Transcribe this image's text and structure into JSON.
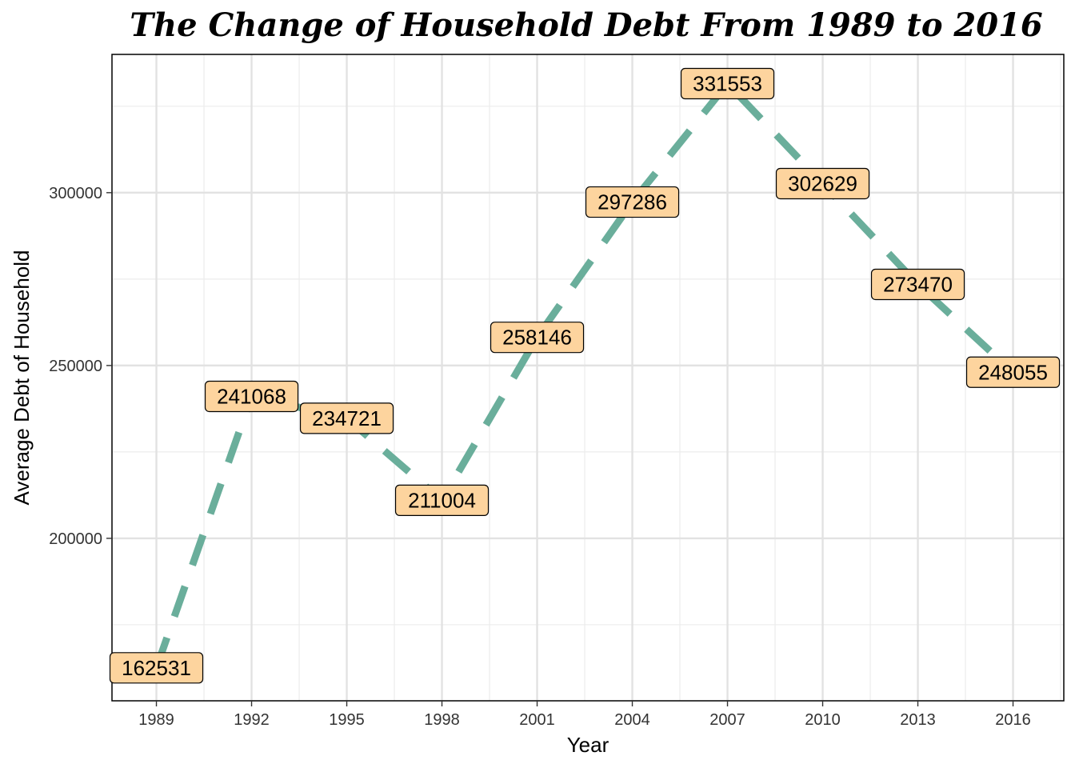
{
  "chart_data": {
    "type": "line",
    "title": "The Change of Household Debt From 1989 to 2016",
    "xlabel": "Year",
    "ylabel": "Average Debt of Household",
    "x": [
      1989,
      1992,
      1995,
      1998,
      2001,
      2004,
      2007,
      2010,
      2013,
      2016
    ],
    "series": [
      {
        "values": [
          162531,
          241068,
          234721,
          211004,
          258146,
          297286,
          331553,
          302629,
          273470,
          248055
        ],
        "labels": [
          "162531",
          "241068",
          "234721",
          "211004",
          "258146",
          "297286",
          "331553",
          "302629",
          "273470",
          "248055"
        ]
      }
    ],
    "x_ticks": [
      "1989",
      "1992",
      "1995",
      "1998",
      "2001",
      "2004",
      "2007",
      "2010",
      "2013",
      "2016"
    ],
    "y_ticks": [
      "200000",
      "250000",
      "300000"
    ],
    "xlim": [
      1987.6,
      2017.6
    ],
    "ylim": [
      153000,
      340000
    ],
    "grid": true,
    "line_style": "dashed",
    "line_color": "#6aae9b",
    "label_fill": "#fdd49e",
    "label_border": "#000000"
  }
}
